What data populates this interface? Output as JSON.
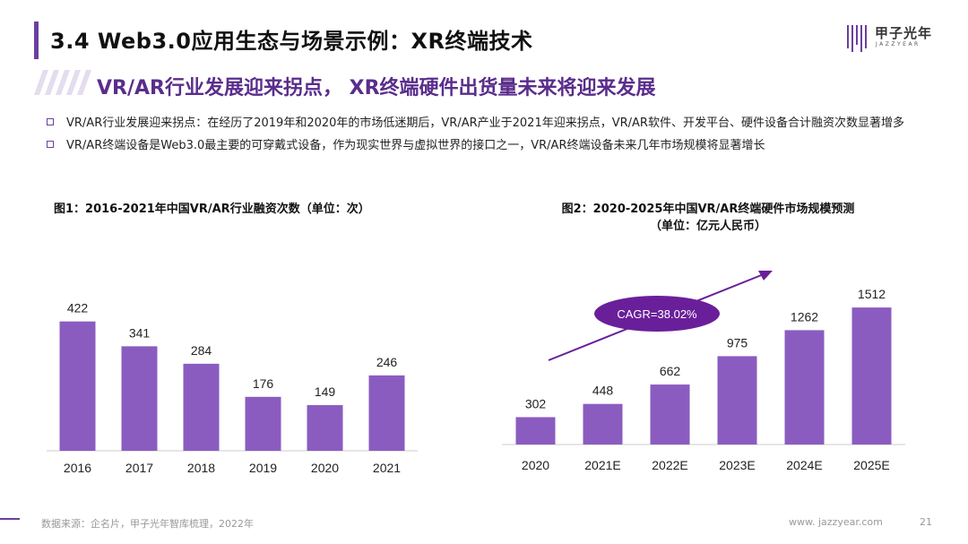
{
  "header": {
    "title": "3.4 Web3.0应用生态与场景示例：XR终端技术",
    "logo_text": "甲子光年",
    "logo_sub": "JAZZYEAR"
  },
  "subtitle": "VR/AR行业发展迎来拐点， XR终端硬件出货量未来将迎来发展",
  "bullets": [
    "VR/AR行业发展迎来拐点：在经历了2019年和2020年的市场低迷期后，VR/AR产业于2021年迎来拐点，VR/AR软件、开发平台、硬件设备合计融资次数显著增多",
    "VR/AR终端设备是Web3.0最主要的可穿戴式设备，作为现实世界与虚拟世界的接口之一，VR/AR终端设备未来几年市场规模将显著增长"
  ],
  "colors": {
    "accent": "#6b3fa0",
    "bar": "#8a5cc0",
    "ellipse": "#6a1f9a"
  },
  "chart_data": [
    {
      "type": "bar",
      "title": "图1：2016-2021年中国VR/AR行业融资次数（单位：次）",
      "categories": [
        "2016",
        "2017",
        "2018",
        "2019",
        "2020",
        "2021"
      ],
      "values": [
        422,
        341,
        284,
        176,
        149,
        246
      ],
      "ylim": [
        0,
        500
      ],
      "xlabel": "",
      "ylabel": ""
    },
    {
      "type": "bar",
      "title_line1": "图2：2020-2025年中国VR/AR终端硬件市场规模预测",
      "title_line2": "（单位：亿元人民币）",
      "categories": [
        "2020",
        "2021E",
        "2022E",
        "2023E",
        "2024E",
        "2025E"
      ],
      "values": [
        302,
        448,
        662,
        975,
        1262,
        1512
      ],
      "ylim": [
        0,
        1800
      ],
      "annotation": "CAGR=38.02%",
      "xlabel": "",
      "ylabel": ""
    }
  ],
  "footer": {
    "source": "数据来源：企名片，甲子光年智库梳理，2022年",
    "website": "www. jazzyear.com",
    "page": "21"
  }
}
